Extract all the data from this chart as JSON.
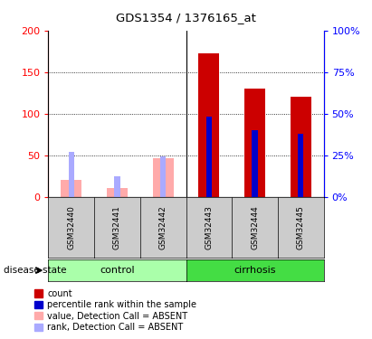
{
  "title": "GDS1354 / 1376165_at",
  "samples": [
    "GSM32440",
    "GSM32441",
    "GSM32442",
    "GSM32443",
    "GSM32444",
    "GSM32445"
  ],
  "absent_value": [
    20,
    10,
    46,
    0,
    0,
    0
  ],
  "absent_rank": [
    27,
    12,
    24,
    0,
    0,
    0
  ],
  "count": [
    0,
    0,
    0,
    172,
    130,
    120
  ],
  "percentile_rank": [
    0,
    0,
    0,
    48,
    40,
    38
  ],
  "ylim_left": [
    0,
    200
  ],
  "ylim_right": [
    0,
    100
  ],
  "yticks_left": [
    0,
    50,
    100,
    150,
    200
  ],
  "yticks_right": [
    0,
    25,
    50,
    75,
    100
  ],
  "color_count": "#cc0000",
  "color_percentile": "#0000cc",
  "color_absent_value": "#ffaaaa",
  "color_absent_rank": "#aaaaff",
  "color_control_bg": "#aaffaa",
  "color_cirrhosis_bg": "#44dd44",
  "color_sample_bg": "#cccccc",
  "legend_items": [
    {
      "label": "count",
      "color": "#cc0000"
    },
    {
      "label": "percentile rank within the sample",
      "color": "#0000cc"
    },
    {
      "label": "value, Detection Call = ABSENT",
      "color": "#ffaaaa"
    },
    {
      "label": "rank, Detection Call = ABSENT",
      "color": "#aaaaff"
    }
  ],
  "disease_state_label": "disease state"
}
